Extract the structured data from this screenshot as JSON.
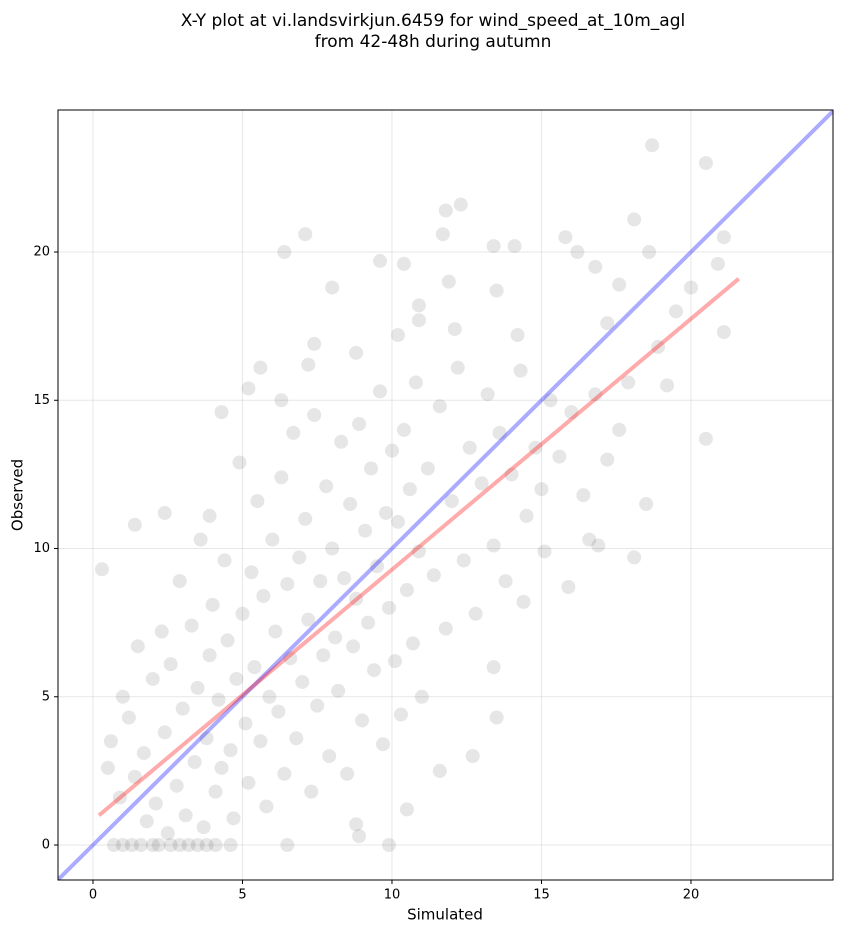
{
  "chart_data": {
    "type": "scatter",
    "title": [
      "X-Y plot at vi.landsvirkjun.6459 for wind_speed_at_10m_agl",
      "from 42-48h during autumn"
    ],
    "x_label": "Simulated",
    "y_label": "Observed",
    "xlim": [
      -1.17,
      24.75
    ],
    "ylim": [
      -1.18,
      24.79
    ],
    "xticks": [
      0,
      5,
      10,
      15,
      20
    ],
    "yticks": [
      0,
      5,
      10,
      15,
      20
    ],
    "grid": true,
    "series": [
      {
        "color": "#404040",
        "x": [
          0.7,
          1.0,
          1.3,
          1.6,
          2.0,
          2.2,
          2.6,
          2.9,
          3.2,
          3.5,
          3.8,
          4.1,
          4.6,
          6.5,
          9.9,
          18.7,
          20.5,
          20.5,
          21.1,
          20.9,
          21.1,
          20.0,
          0.3,
          1.4,
          2.4,
          7.1,
          6.4,
          11.8,
          12.3,
          9.6,
          10.4,
          13.4,
          14.1,
          15.8,
          16.2,
          18.1,
          18.6,
          16.8,
          8.0,
          11.7,
          10.9,
          11.9,
          13.5,
          19.5,
          17.6,
          18.9,
          19.2,
          18.1,
          18.5,
          15.1,
          14.4,
          15.9,
          16.6,
          16.9,
          13.4,
          13.5,
          12.7,
          11.6,
          10.5,
          8.9,
          8.8,
          5.6,
          5.2,
          6.3,
          4.3,
          7.4,
          8.8,
          7.2,
          3.9,
          10.2,
          10.9,
          12.1,
          14.2,
          0.5,
          0.6,
          0.9,
          1.0,
          1.2,
          1.4,
          1.5,
          1.7,
          1.8,
          2.0,
          2.1,
          2.3,
          2.4,
          2.5,
          2.6,
          2.8,
          2.9,
          3.0,
          3.1,
          3.3,
          3.4,
          3.5,
          3.6,
          3.7,
          3.8,
          3.9,
          4.0,
          4.1,
          4.2,
          4.3,
          4.4,
          4.5,
          4.6,
          4.7,
          4.8,
          4.9,
          5.0,
          5.1,
          5.2,
          5.3,
          5.4,
          5.5,
          5.6,
          5.7,
          5.8,
          5.9,
          6.0,
          6.1,
          6.2,
          6.3,
          6.4,
          6.5,
          6.6,
          6.7,
          6.8,
          6.9,
          7.0,
          7.1,
          7.2,
          7.3,
          7.4,
          7.5,
          7.6,
          7.7,
          7.8,
          7.9,
          8.0,
          8.1,
          8.2,
          8.3,
          8.4,
          8.5,
          8.6,
          8.7,
          8.8,
          8.9,
          9.0,
          9.1,
          9.2,
          9.3,
          9.4,
          9.5,
          9.6,
          9.7,
          9.8,
          9.9,
          10.0,
          10.1,
          10.2,
          10.3,
          10.4,
          10.5,
          10.6,
          10.7,
          10.8,
          10.9,
          11.0,
          11.2,
          11.4,
          11.6,
          11.8,
          12.0,
          12.2,
          12.4,
          12.6,
          12.8,
          13.0,
          13.2,
          13.4,
          13.6,
          13.8,
          14.0,
          14.3,
          14.5,
          14.8,
          15.0,
          15.3,
          15.6,
          16.0,
          16.4,
          16.8,
          17.2,
          17.6,
          17.9,
          17.2
        ],
        "values": [
          0,
          0,
          0,
          0,
          0,
          0,
          0,
          0,
          0,
          0,
          0,
          0,
          0,
          0,
          0,
          23.6,
          23.0,
          13.7,
          20.5,
          19.6,
          17.3,
          18.8,
          9.3,
          10.8,
          11.2,
          20.6,
          20.0,
          21.4,
          21.6,
          19.7,
          19.6,
          20.2,
          20.2,
          20.5,
          20.0,
          21.1,
          20.0,
          19.5,
          18.8,
          20.6,
          18.2,
          19.0,
          18.7,
          18.0,
          18.9,
          16.8,
          15.5,
          9.7,
          11.5,
          9.9,
          8.2,
          8.7,
          10.3,
          10.1,
          6.0,
          4.3,
          3.0,
          2.5,
          1.2,
          0.3,
          0.7,
          16.1,
          15.4,
          15.0,
          14.6,
          16.9,
          16.6,
          16.2,
          11.1,
          17.2,
          17.7,
          17.4,
          17.2,
          2.6,
          3.5,
          1.6,
          5.0,
          4.3,
          2.3,
          6.7,
          3.1,
          0.8,
          5.6,
          1.4,
          7.2,
          3.8,
          0.4,
          6.1,
          2.0,
          8.9,
          4.6,
          1.0,
          7.4,
          2.8,
          5.3,
          10.3,
          0.6,
          3.6,
          6.4,
          8.1,
          1.8,
          4.9,
          2.6,
          9.6,
          6.9,
          3.2,
          0.9,
          5.6,
          12.9,
          7.8,
          4.1,
          2.1,
          9.2,
          6.0,
          11.6,
          3.5,
          8.4,
          1.3,
          5.0,
          10.3,
          7.2,
          4.5,
          12.4,
          2.4,
          8.8,
          6.3,
          13.9,
          3.6,
          9.7,
          5.5,
          11.0,
          7.6,
          1.8,
          14.5,
          4.7,
          8.9,
          6.4,
          12.1,
          3.0,
          10.0,
          7.0,
          5.2,
          13.6,
          9.0,
          2.4,
          11.5,
          6.7,
          8.3,
          14.2,
          4.2,
          10.6,
          7.5,
          12.7,
          5.9,
          9.4,
          15.3,
          3.4,
          11.2,
          8.0,
          13.3,
          6.2,
          10.9,
          4.4,
          14.0,
          8.6,
          12.0,
          6.8,
          15.6,
          9.9,
          5.0,
          12.7,
          9.1,
          14.8,
          7.3,
          11.6,
          16.1,
          9.6,
          13.4,
          7.8,
          12.2,
          15.2,
          10.1,
          13.9,
          8.9,
          12.5,
          16.0,
          11.1,
          13.4,
          12.0,
          15.0,
          13.1,
          14.6,
          11.8,
          15.2,
          13.0,
          14.0,
          15.6,
          17.6
        ]
      }
    ],
    "lines": [
      {
        "color": "#0000ff",
        "x": [
          -1.17,
          24.75
        ],
        "y": [
          -1.17,
          24.75
        ]
      },
      {
        "color": "#ff0000",
        "x": [
          0.2,
          21.6
        ],
        "y": [
          1.0,
          19.1
        ]
      }
    ]
  }
}
